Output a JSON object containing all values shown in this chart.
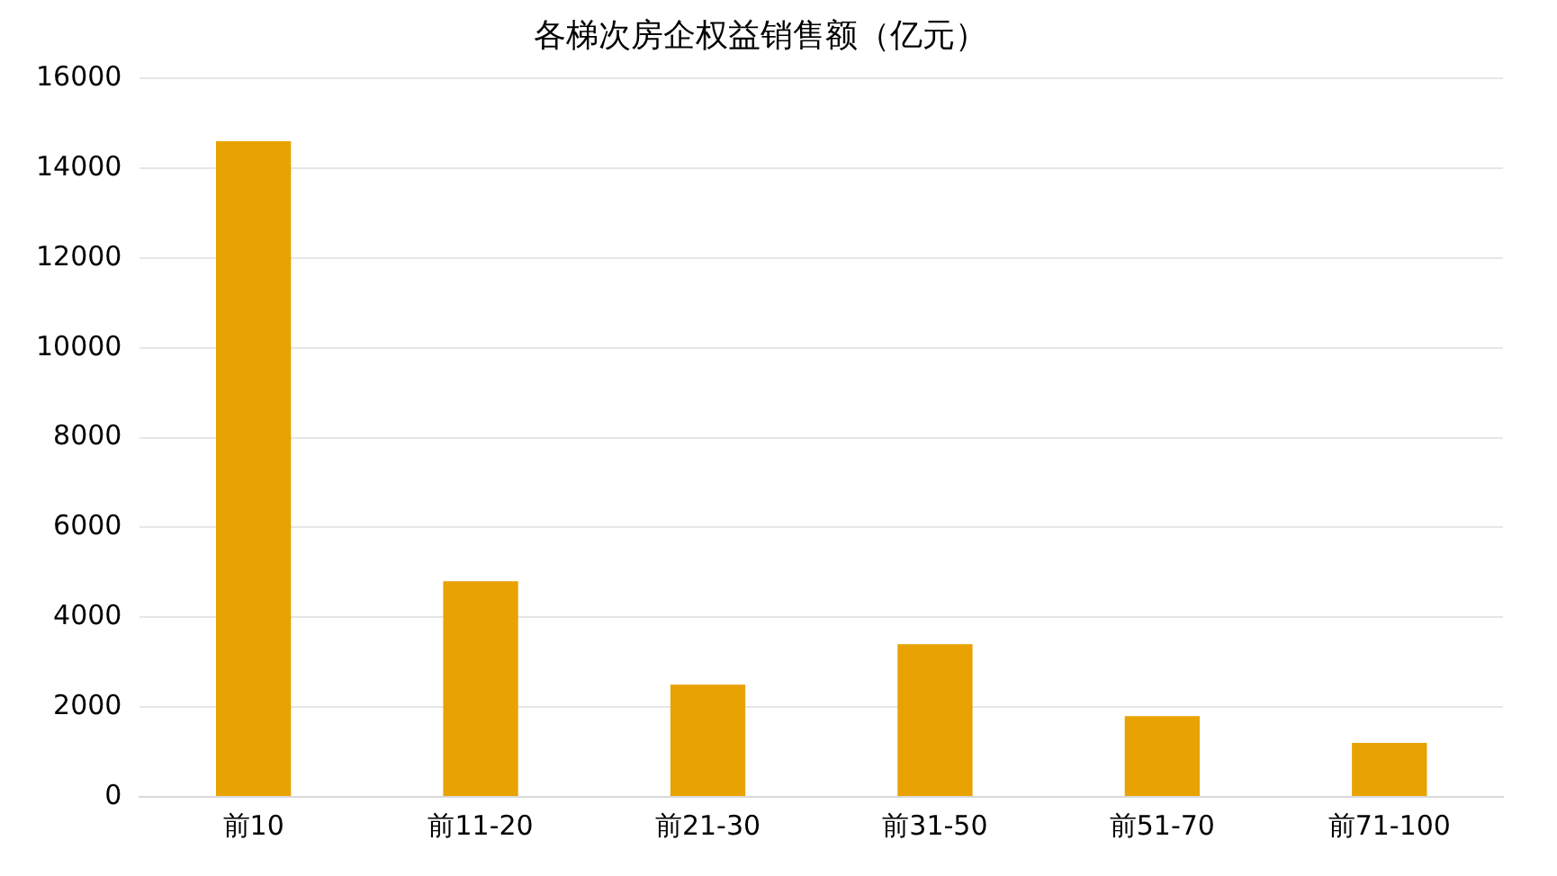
{
  "chart_data": {
    "type": "bar",
    "title": "各梯次房企权益销售额（亿元）",
    "categories": [
      "前10",
      "前11-20",
      "前21-30",
      "前31-50",
      "前51-70",
      "前71-100"
    ],
    "values": [
      14600,
      4800,
      2500,
      3400,
      1800,
      1200
    ],
    "color": "#e8a202",
    "ylim": [
      0,
      16000
    ],
    "yticks": [
      0,
      2000,
      4000,
      6000,
      8000,
      10000,
      12000,
      14000,
      16000
    ],
    "grid": "y",
    "legend": false
  }
}
